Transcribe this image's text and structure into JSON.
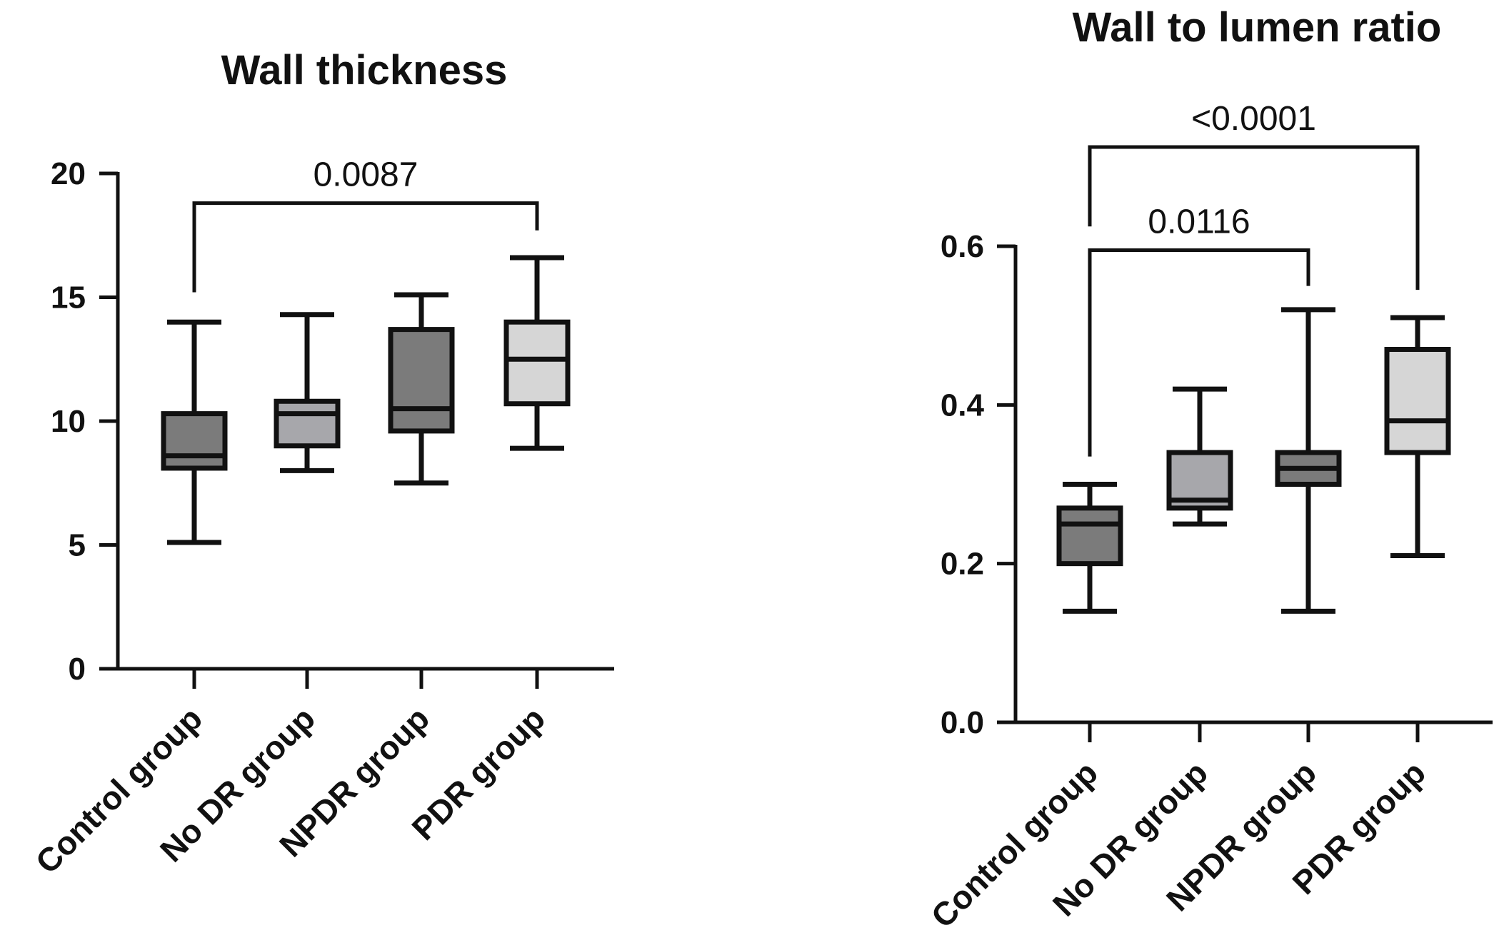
{
  "chart_data": [
    {
      "type": "box",
      "title": "Wall thickness",
      "categories": [
        "Control group",
        "No DR group",
        "NPDR group",
        "PDR group"
      ],
      "ylim": [
        0,
        20
      ],
      "yticks": [
        0,
        5,
        10,
        15,
        20
      ],
      "ytick_labels": [
        "0",
        "5",
        "10",
        "15",
        "20"
      ],
      "fills": [
        "#7b7b7b",
        "#a7a7ab",
        "#7b7b7b",
        "#d6d6d6"
      ],
      "boxes": [
        {
          "min": 5.1,
          "q1": 8.1,
          "median": 8.6,
          "q3": 10.3,
          "max": 14.0
        },
        {
          "min": 8.0,
          "q1": 9.0,
          "median": 10.3,
          "q3": 10.8,
          "max": 14.3
        },
        {
          "min": 7.5,
          "q1": 9.6,
          "median": 10.5,
          "q3": 13.7,
          "max": 15.1
        },
        {
          "min": 8.9,
          "q1": 10.7,
          "median": 12.5,
          "q3": 14.0,
          "max": 16.6
        }
      ],
      "comparisons": [
        {
          "from": 0,
          "to": 3,
          "label": "0.0087",
          "y": 18.8,
          "left_drop": 15.2,
          "right_drop": 17.7
        }
      ]
    },
    {
      "type": "box",
      "title": "Wall to lumen ratio",
      "categories": [
        "Control group",
        "No DR group",
        "NPDR group",
        "PDR group"
      ],
      "ylim": [
        0,
        0.6
      ],
      "yticks": [
        0.0,
        0.2,
        0.4,
        0.6
      ],
      "ytick_labels": [
        "0.0",
        "0.2",
        "0.4",
        "0.6"
      ],
      "fills": [
        "#7b7b7b",
        "#a7a7ab",
        "#7b7b7b",
        "#d6d6d6"
      ],
      "boxes": [
        {
          "min": 0.14,
          "q1": 0.2,
          "median": 0.25,
          "q3": 0.27,
          "max": 0.3
        },
        {
          "min": 0.25,
          "q1": 0.27,
          "median": 0.28,
          "q3": 0.34,
          "max": 0.42
        },
        {
          "min": 0.14,
          "q1": 0.3,
          "median": 0.32,
          "q3": 0.34,
          "max": 0.52
        },
        {
          "min": 0.21,
          "q1": 0.34,
          "median": 0.38,
          "q3": 0.47,
          "max": 0.51
        }
      ],
      "comparisons": [
        {
          "from": 0,
          "to": 2,
          "label": "0.0116",
          "y": 0.595,
          "left_drop": 0.335,
          "right_drop": 0.55
        },
        {
          "from": 0,
          "to": 3,
          "label": "<0.0001",
          "y": 0.725,
          "left_drop": 0.625,
          "right_drop": 0.545
        }
      ]
    }
  ]
}
